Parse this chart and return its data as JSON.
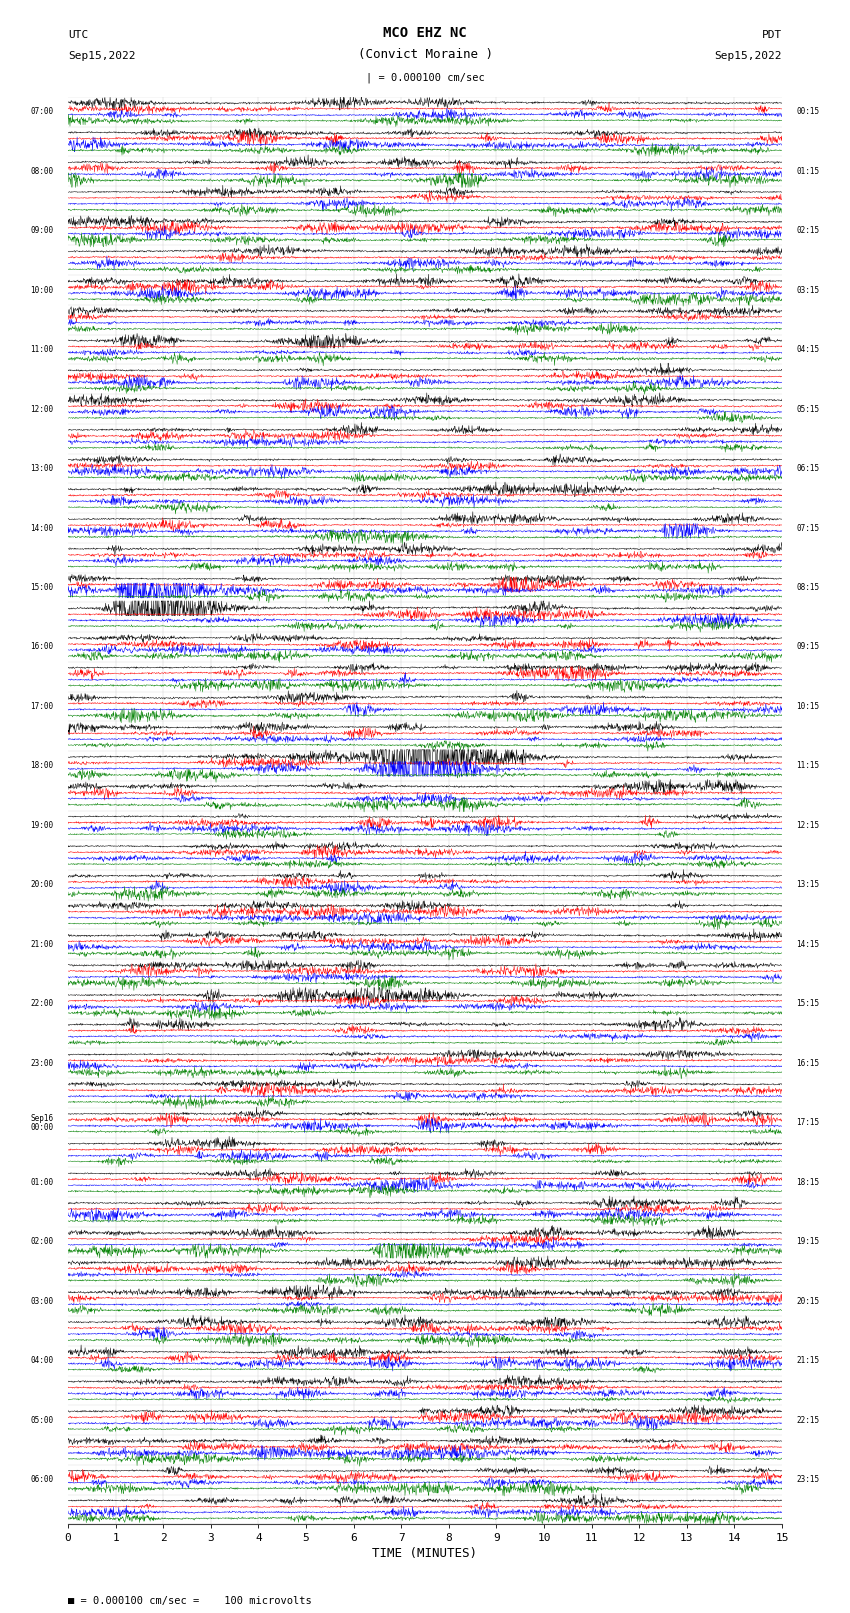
{
  "title_line1": "MCO EHZ NC",
  "title_line2": "(Convict Moraine )",
  "scale_label": "| = 0.000100 cm/sec",
  "footer_label": "= 0.000100 cm/sec =    100 microvolts",
  "utc_label": "UTC",
  "pdt_label": "PDT",
  "date_left": "Sep15,2022",
  "date_right": "Sep15,2022",
  "xlabel": "TIME (MINUTES)",
  "bg_color": "#ffffff",
  "trace_colors": [
    "black",
    "red",
    "blue",
    "green"
  ],
  "n_rows": 48,
  "fig_width": 8.5,
  "fig_height": 16.13,
  "left_times": [
    "07:00",
    "",
    "08:00",
    "",
    "09:00",
    "",
    "10:00",
    "",
    "11:00",
    "",
    "12:00",
    "",
    "13:00",
    "",
    "14:00",
    "",
    "15:00",
    "",
    "16:00",
    "",
    "17:00",
    "",
    "18:00",
    "",
    "19:00",
    "",
    "20:00",
    "",
    "21:00",
    "",
    "22:00",
    "",
    "23:00",
    "",
    "Sep16\n00:00",
    "",
    "01:00",
    "",
    "02:00",
    "",
    "03:00",
    "",
    "04:00",
    "",
    "05:00",
    "",
    "06:00",
    ""
  ],
  "right_times": [
    "00:15",
    "",
    "01:15",
    "",
    "02:15",
    "",
    "03:15",
    "",
    "04:15",
    "",
    "05:15",
    "",
    "06:15",
    "",
    "07:15",
    "",
    "08:15",
    "",
    "09:15",
    "",
    "10:15",
    "",
    "11:15",
    "",
    "12:15",
    "",
    "13:15",
    "",
    "14:15",
    "",
    "15:15",
    "",
    "16:15",
    "",
    "17:15",
    "",
    "18:15",
    "",
    "19:15",
    "",
    "20:15",
    "",
    "21:15",
    "",
    "22:15",
    "",
    "23:15",
    ""
  ],
  "seed": 12345
}
